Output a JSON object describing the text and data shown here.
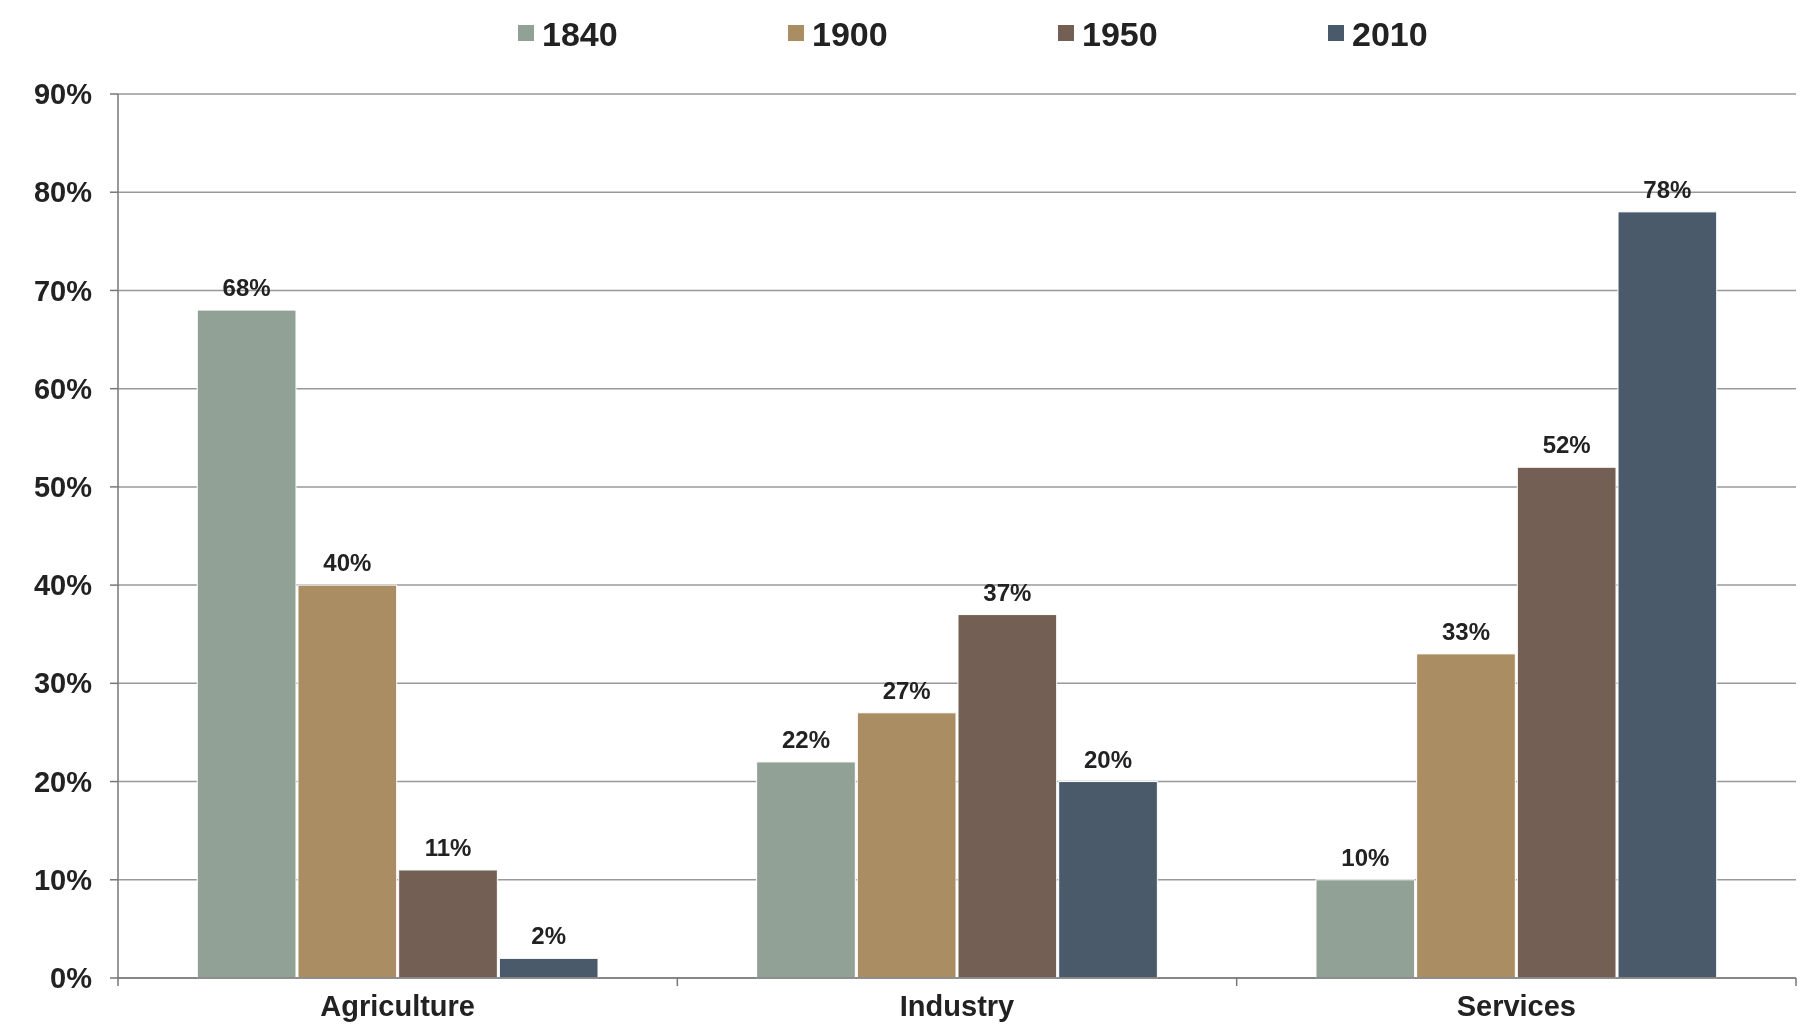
{
  "chart_data": {
    "type": "bar",
    "categories": [
      "Agriculture",
      "Industry",
      "Services"
    ],
    "series": [
      {
        "name": "1840",
        "color": "#91a196",
        "values": [
          68,
          22,
          10
        ],
        "value_labels": [
          "68%",
          "22%",
          "10%"
        ]
      },
      {
        "name": "1900",
        "color": "#ab8d64",
        "values": [
          40,
          27,
          33
        ],
        "value_labels": [
          "40%",
          "27%",
          "33%"
        ]
      },
      {
        "name": "1950",
        "color": "#735f53",
        "values": [
          11,
          37,
          52
        ],
        "value_labels": [
          "11%",
          "37%",
          "52%"
        ]
      },
      {
        "name": "2010",
        "color": "#4b5a6a",
        "values": [
          2,
          20,
          78
        ],
        "value_labels": [
          "2%",
          "20%",
          "78%"
        ]
      }
    ],
    "ylim": [
      0,
      90
    ],
    "yticks": [
      {
        "value": 0,
        "label": "0%"
      },
      {
        "value": 10,
        "label": "10%"
      },
      {
        "value": 20,
        "label": "20%"
      },
      {
        "value": 30,
        "label": "30%"
      },
      {
        "value": 40,
        "label": "40%"
      },
      {
        "value": 50,
        "label": "50%"
      },
      {
        "value": 60,
        "label": "60%"
      },
      {
        "value": 70,
        "label": "70%"
      },
      {
        "value": 80,
        "label": "80%"
      },
      {
        "value": 90,
        "label": "90%"
      }
    ],
    "grid": "y",
    "legend": "top"
  }
}
